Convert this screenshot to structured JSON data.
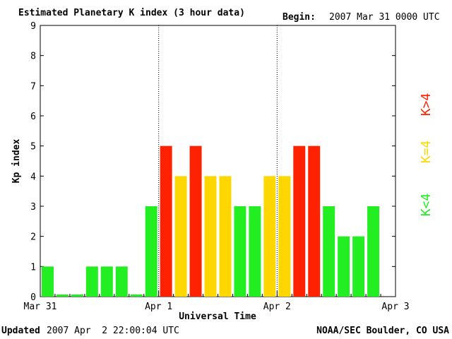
{
  "header": {
    "title": "Estimated Planetary K index (3 hour data)",
    "begin_label": "Begin:",
    "begin_value": "2007 Mar 31 0000 UTC"
  },
  "footer": {
    "updated_label": "Updated",
    "updated_value": "2007 Apr  2 22:00:04 UTC",
    "source": "NOAA/SEC Boulder, CO USA"
  },
  "legend": {
    "low": "K<4",
    "mid": "K=4",
    "high": "K>4"
  },
  "colors": {
    "low": "#22ee22",
    "mid": "#ffd700",
    "high": "#ff2200"
  },
  "chart_data": {
    "type": "bar",
    "title": "Estimated Planetary K index (3 hour data)",
    "xlabel": "Universal Time",
    "ylabel": "Kp index",
    "ylim": [
      0,
      9
    ],
    "yticks": [
      0,
      1,
      2,
      3,
      4,
      5,
      6,
      7,
      8,
      9
    ],
    "xticks": [
      "Mar 31",
      "Apr 1",
      "Apr 2",
      "Apr 3"
    ],
    "bins_per_day": 8,
    "day_separators": [
      "Apr 1",
      "Apr 2"
    ],
    "values": [
      1,
      0,
      0,
      1,
      1,
      1,
      0,
      3,
      5,
      4,
      5,
      4,
      4,
      3,
      3,
      4,
      4,
      5,
      5,
      3,
      2,
      2,
      3
    ]
  }
}
